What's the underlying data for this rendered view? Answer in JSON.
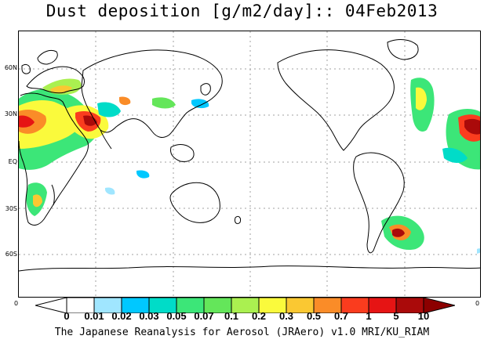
{
  "title": "Dust deposition [g/m2/day]:: 04Feb2013",
  "footer": "The Japanese Reanalysis for Aerosol (JRAero) v1.0 MRI/KU_RIAM",
  "map": {
    "latitude_labels": [
      "60N",
      "30N",
      "EQ",
      "30S",
      "60S"
    ],
    "corner_values": [
      "0",
      "0"
    ],
    "coastline_color": "#000000",
    "grid_color": "#a0a0a0"
  },
  "legend": {
    "unit": "g/m2/day",
    "labels": [
      "0",
      "0.01",
      "0.02",
      "0.03",
      "0.05",
      "0.07",
      "0.1",
      "0.2",
      "0.3",
      "0.5",
      "0.7",
      "1",
      "5",
      "10"
    ],
    "colors": [
      "#ffffff",
      "#ffffff",
      "#a0e6ff",
      "#00c8ff",
      "#00dcc8",
      "#3ce678",
      "#64e65a",
      "#aaf050",
      "#fafa3c",
      "#fac832",
      "#fa8c28",
      "#fa3c1e",
      "#e61414",
      "#aa0a0a",
      "#8c0000"
    ]
  }
}
